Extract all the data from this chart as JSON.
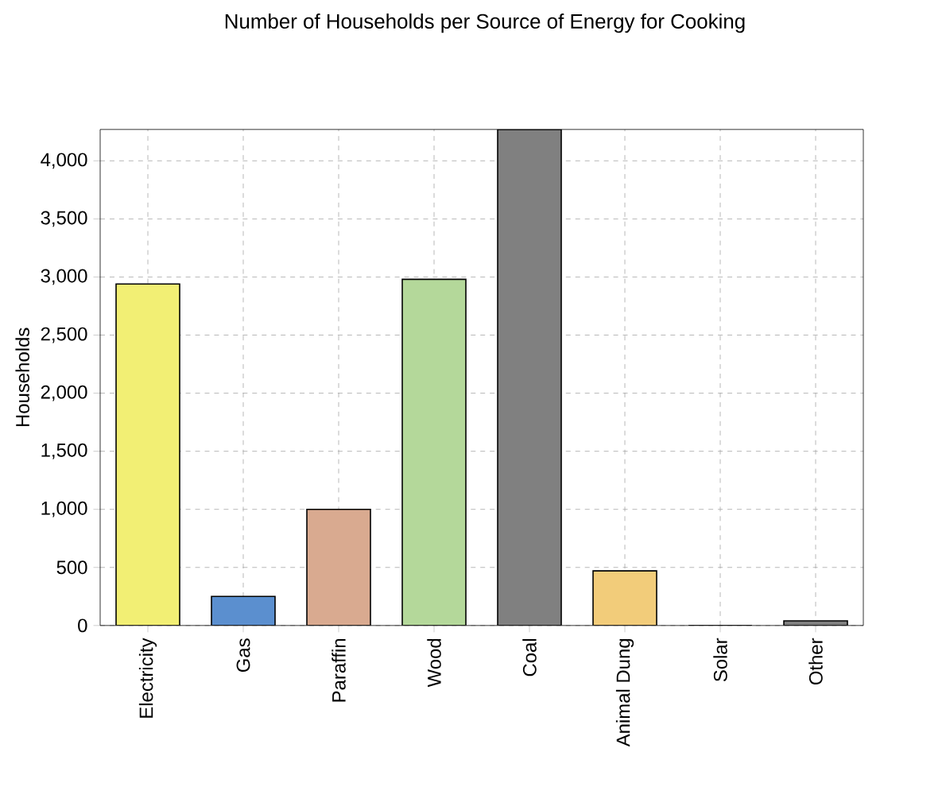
{
  "chart_data": {
    "type": "bar",
    "title": "Number of Households per Source of Energy for Cooking",
    "ylabel": "Households",
    "categories": [
      "Electricity",
      "Gas",
      "Paraffin",
      "Wood",
      "Coal",
      "Animal Dung",
      "Solar",
      "Other"
    ],
    "values": [
      2940,
      250,
      1000,
      2980,
      4270,
      470,
      0,
      40
    ],
    "colors": [
      "#f2ef74",
      "#5b8fcf",
      "#d9aa90",
      "#b4d89a",
      "#808080",
      "#f2cc7a",
      "#c0c0c0",
      "#808080"
    ],
    "ylim": [
      0,
      4270
    ],
    "yticks": [
      {
        "value": 0,
        "label": "0"
      },
      {
        "value": 500,
        "label": "500"
      },
      {
        "value": 1000,
        "label": "1,000"
      },
      {
        "value": 1500,
        "label": "1,500"
      },
      {
        "value": 2000,
        "label": "2,000"
      },
      {
        "value": 2500,
        "label": "2,500"
      },
      {
        "value": 3000,
        "label": "3,000"
      },
      {
        "value": 3500,
        "label": "3,500"
      },
      {
        "value": 4000,
        "label": "4,000"
      }
    ],
    "grid": true
  }
}
